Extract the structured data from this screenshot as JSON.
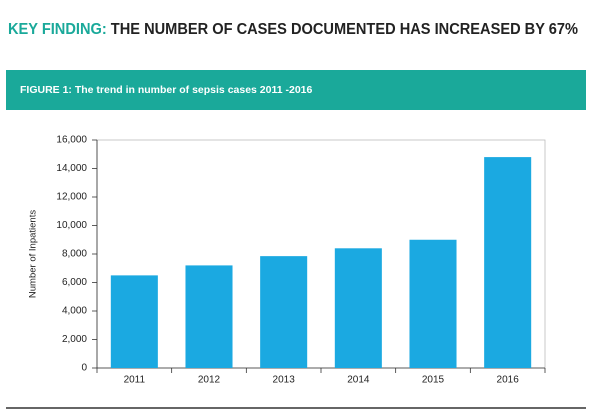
{
  "header": {
    "label": "KEY FINDING:",
    "text": "THE NUMBER OF CASES DOCUMENTED HAS INCREASED BY 67%"
  },
  "chart_data": {
    "type": "bar",
    "title": "FIGURE 1: The trend in number of sepsis cases 2011 -2016",
    "y_label": "Number of Inpatients",
    "categories": [
      "2011",
      "2012",
      "2013",
      "2014",
      "2015",
      "2016"
    ],
    "values": [
      6500,
      7200,
      7850,
      8400,
      9000,
      14800
    ],
    "color": "#1ba9e1",
    "ylim": [
      0,
      16000
    ],
    "yticks": [
      0,
      {
        "value": 2000,
        "label": "2,000"
      },
      {
        "value": 4000,
        "label": "4,000"
      },
      {
        "value": 6000,
        "label": "6,000"
      },
      {
        "value": 8000,
        "label": "8,000"
      },
      {
        "value": 10000,
        "label": "10,000"
      },
      {
        "value": 12000,
        "label": "12,000"
      },
      {
        "value": 14000,
        "label": "14,000"
      },
      {
        "value": 16000,
        "label": "16,000"
      }
    ],
    "grid": false
  }
}
